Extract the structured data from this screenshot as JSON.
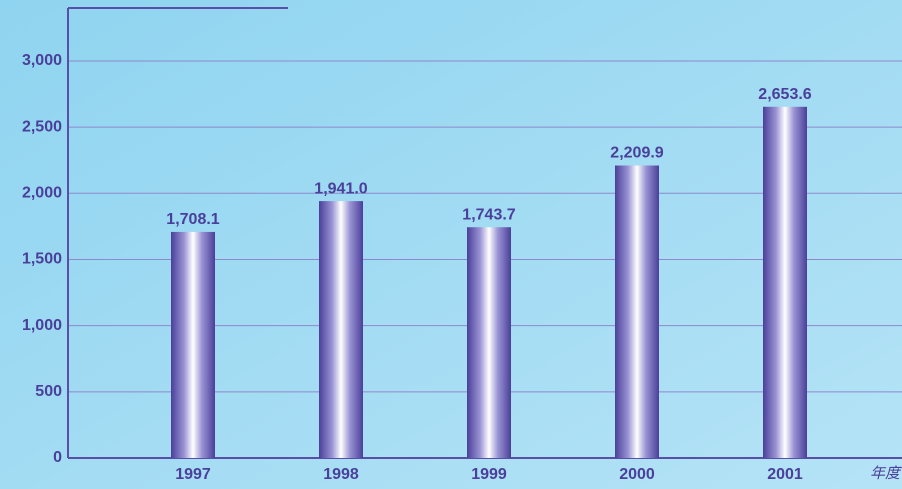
{
  "chart_data": {
    "type": "bar",
    "categories": [
      "1997",
      "1998",
      "1999",
      "2000",
      "2001"
    ],
    "values": [
      1708.1,
      1941.0,
      1743.7,
      2209.9,
      2653.6
    ],
    "value_labels": [
      "1,708.1",
      "1,941.0",
      "1,743.7",
      "2,209.9",
      "2,653.6"
    ],
    "x_label": "年度",
    "color": "#5a4fa8",
    "ylim": [
      0,
      3400
    ],
    "yticks": [
      0,
      500,
      {
        "value": 1000,
        "label": "1,000"
      },
      {
        "value": 1500,
        "label": "1,500"
      },
      {
        "value": 2000,
        "label": "2,000"
      },
      {
        "value": 2500,
        "label": "2,500"
      },
      {
        "value": 3000,
        "label": "3,000"
      }
    ],
    "grid": true
  }
}
